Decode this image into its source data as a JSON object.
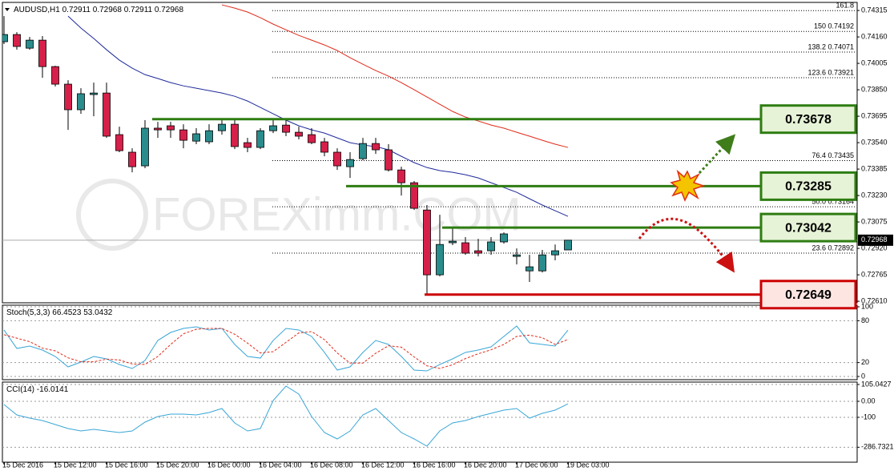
{
  "chart_data": [
    {
      "type": "candlestick",
      "title": "AUDUSD,H1",
      "watermark": "FOREXimm.COM",
      "categories": [
        "15 Dec 2016",
        null,
        null,
        null,
        "15 Dec 12:00",
        null,
        null,
        null,
        "15 Dec 16:00",
        null,
        null,
        null,
        "15 Dec 20:00",
        null,
        null,
        null,
        "16 Dec 00:00",
        null,
        null,
        null,
        "16 Dec 04:00",
        null,
        null,
        null,
        "16 Dec 08:00",
        null,
        null,
        null,
        "16 Dec 12:00",
        null,
        null,
        null,
        "16 Dec 16:00",
        null,
        null,
        null,
        "16 Dec 20:00",
        null,
        null,
        null,
        "17 Dec 06:00",
        null,
        null,
        null,
        "19 Dec 03:00"
      ],
      "open": [
        0.74132,
        0.74174,
        0.74094,
        0.74141,
        0.73986,
        0.73883,
        0.73733,
        0.73822,
        0.73831,
        0.73587,
        0.73484,
        0.73404,
        0.73625,
        0.73639,
        0.73615,
        0.73549,
        0.73545,
        0.7361,
        0.73648,
        0.7354,
        0.73512,
        0.7361,
        0.73643,
        0.73601,
        0.73587,
        0.73545,
        0.73484,
        0.73399,
        0.73446,
        0.73535,
        0.73498,
        0.7338,
        0.73305,
        0.73145,
        0.72765,
        0.72953,
        0.72953,
        0.72906,
        0.72906,
        0.72958,
        0.72873,
        0.72788,
        0.72788,
        0.72882,
        0.72911
      ],
      "high": [
        0.74282,
        0.74188,
        0.7416,
        0.74165,
        0.73991,
        0.73906,
        0.73859,
        0.73892,
        0.73892,
        0.73634,
        0.73507,
        0.73672,
        0.73662,
        0.73662,
        0.73648,
        0.73625,
        0.73648,
        0.73672,
        0.73672,
        0.73568,
        0.73625,
        0.73672,
        0.73681,
        0.73634,
        0.73625,
        0.73568,
        0.73507,
        0.73484,
        0.73568,
        0.73568,
        0.73531,
        0.73399,
        0.73315,
        0.73174,
        0.73117,
        0.73037,
        0.72986,
        0.72976,
        0.72986,
        0.73014,
        0.7292,
        0.72882,
        0.72911,
        0.72943,
        0.72968
      ],
      "low": [
        0.74118,
        0.74085,
        0.74085,
        0.7392,
        0.73869,
        0.73615,
        0.73709,
        0.73695,
        0.73568,
        0.73484,
        0.73366,
        0.7339,
        0.73568,
        0.73568,
        0.73507,
        0.73531,
        0.73531,
        0.73587,
        0.73502,
        0.73484,
        0.73502,
        0.73596,
        0.73578,
        0.73559,
        0.73531,
        0.7346,
        0.7338,
        0.73333,
        0.73437,
        0.73474,
        0.73371,
        0.7323,
        0.73145,
        0.72649,
        0.72756,
        0.72939,
        0.72882,
        0.72873,
        0.72882,
        0.72948,
        0.72826,
        0.72723,
        0.72779,
        0.7285,
        0.72911
      ],
      "close": [
        0.74174,
        0.74104,
        0.74141,
        0.73986,
        0.73883,
        0.73733,
        0.73827,
        0.73831,
        0.73578,
        0.73493,
        0.73399,
        0.73625,
        0.73615,
        0.73615,
        0.73554,
        0.73592,
        0.7361,
        0.73648,
        0.73517,
        0.73512,
        0.7361,
        0.73639,
        0.73601,
        0.73578,
        0.7354,
        0.73484,
        0.73404,
        0.73441,
        0.73535,
        0.73498,
        0.7338,
        0.73305,
        0.73155,
        0.72765,
        0.72943,
        0.72962,
        0.72892,
        0.72892,
        0.72958,
        0.73005,
        0.72882,
        0.72812,
        0.72882,
        0.72906,
        0.72968
      ],
      "up_color": "#2a8c8c",
      "down_color": "#d6204a",
      "series": [
        {
          "color": "#1f2a9a",
          "values": [
            null,
            null,
            null,
            null,
            null,
            0.74282,
            0.74212,
            0.74151,
            0.74085,
            0.74024,
            0.73977,
            0.73939,
            0.73916,
            0.73892,
            0.73873,
            0.73859,
            0.73845,
            0.73831,
            0.73812,
            0.73784,
            0.73747,
            0.73709,
            0.73672,
            0.73639,
            0.73615,
            0.73596,
            0.73568,
            0.7354,
            0.73526,
            0.73517,
            0.73498,
            0.7346,
            0.73423,
            0.73394,
            0.73376,
            0.73366,
            0.73352,
            0.73333,
            0.73305,
            0.73277,
            0.73249,
            0.73211,
            0.73174,
            0.73141,
            0.73108
          ]
        },
        {
          "color": "#e02a1a",
          "values": [
            null,
            null,
            null,
            null,
            null,
            null,
            null,
            null,
            null,
            null,
            null,
            null,
            null,
            null,
            null,
            null,
            null,
            0.74348,
            0.74329,
            0.74306,
            0.74273,
            0.74235,
            0.74202,
            0.74169,
            0.74141,
            0.74113,
            0.7408,
            0.74038,
            0.74,
            0.73963,
            0.7393,
            0.73892,
            0.7385,
            0.73808,
            0.73765,
            0.73723,
            0.7369,
            0.73667,
            0.73643,
            0.73625,
            0.73601,
            0.73578,
            0.73554,
            0.73531,
            0.73512
          ]
        }
      ],
      "ylim": [
        0.72601,
        0.74353
      ],
      "yticks": [
        0.74315,
        {
          "value": 0.7416,
          "label": "0.74160"
        },
        0.74005,
        {
          "value": 0.7385,
          "label": "0.73850"
        },
        0.73695,
        {
          "value": 0.7354,
          "label": "0.73540"
        },
        0.73385,
        {
          "value": 0.7323,
          "label": "0.73230"
        },
        0.73075,
        {
          "value": 0.7292,
          "label": "0.72920"
        },
        0.72765,
        {
          "value": 0.7261,
          "label": "0.72610"
        }
      ],
      "fib_levels": [
        {
          "value": 0.74314,
          "label": "161.8"
        },
        {
          "value": 0.74192,
          "label": "150  0.74192"
        },
        {
          "value": 0.74071,
          "label": "138.2  0.74071"
        },
        {
          "value": 0.73921,
          "label": "123.6  0.73921"
        },
        {
          "value": 0.73435,
          "label": "76.4  0.73435"
        },
        {
          "value": 0.73164,
          "label": "50.0  0.73164"
        },
        {
          "value": 0.72892,
          "label": "23.6  0.72892"
        }
      ],
      "levels": [
        {
          "value": 0.73678,
          "color": "#2e7d12"
        },
        {
          "value": 0.73285,
          "color": "#2e7d12"
        },
        {
          "value": 0.73042,
          "color": "#2e7d12"
        },
        {
          "value": 0.72649,
          "color": "#cc0000"
        }
      ]
    },
    {
      "type": "line",
      "title": "Stoch(5,3,3)",
      "series": [
        {
          "color": "#3aa6d6",
          "values": [
            66.7,
            40.2,
            43.7,
            37.9,
            28.7,
            13.8,
            20.7,
            28.7,
            25.3,
            17.2,
            11.5,
            23.0,
            51.7,
            63.2,
            69.0,
            71.3,
            66.7,
            69.0,
            46.0,
            28.7,
            26.4,
            51.7,
            69.0,
            66.7,
            57.5,
            34.5,
            9.2,
            13.8,
            34.5,
            51.7,
            46.0,
            28.7,
            9.2,
            8.0,
            17.2,
            25.3,
            34.5,
            37.9,
            42.5,
            57.5,
            72.4,
            48.3,
            46.0,
            43.7,
            66.4523
          ]
        },
        {
          "color": "#e02a1a",
          "dashed": true,
          "values": [
            60,
            55,
            50,
            40.6,
            36.8,
            26.8,
            21.1,
            21.1,
            24.9,
            23.7,
            18.0,
            17.2,
            28.7,
            46.0,
            61.3,
            67.8,
            69.0,
            69.0,
            60.6,
            47.9,
            33.7,
            35.6,
            49.0,
            62.5,
            64.4,
            52.9,
            33.7,
            19.2,
            19.2,
            33.3,
            44.1,
            42.1,
            28.0,
            15.3,
            11.5,
            16.8,
            25.7,
            32.6,
            38.3,
            46.0,
            57.5,
            59.4,
            55.6,
            46.0,
            53.0432
          ]
        }
      ],
      "ylim": [
        0,
        100
      ],
      "yticks": [
        100,
        80,
        20,
        0
      ],
      "grid": true
    },
    {
      "type": "line",
      "title": "CCI(14)",
      "series": [
        {
          "color": "#3aa6d6",
          "values": [
            -20,
            -85,
            -105,
            -120,
            -145,
            -170,
            -185,
            -175,
            -185,
            -195,
            -185,
            -130,
            -95,
            -80,
            -80,
            -85,
            -70,
            -45,
            -135,
            -185,
            -170,
            5,
            95,
            45,
            -95,
            -195,
            -235,
            -185,
            -85,
            -45,
            -120,
            -195,
            -235,
            -280,
            -185,
            -135,
            -120,
            -95,
            -75,
            -55,
            -45,
            -105,
            -75,
            -55,
            -16.0141
          ]
        }
      ],
      "ylim": [
        -380,
        120
      ],
      "yticks": [
        105.0427,
        {
          "value": 0,
          "label": "0.00"
        },
        -100,
        -286.7321
      ],
      "grid": true
    }
  ]
}
